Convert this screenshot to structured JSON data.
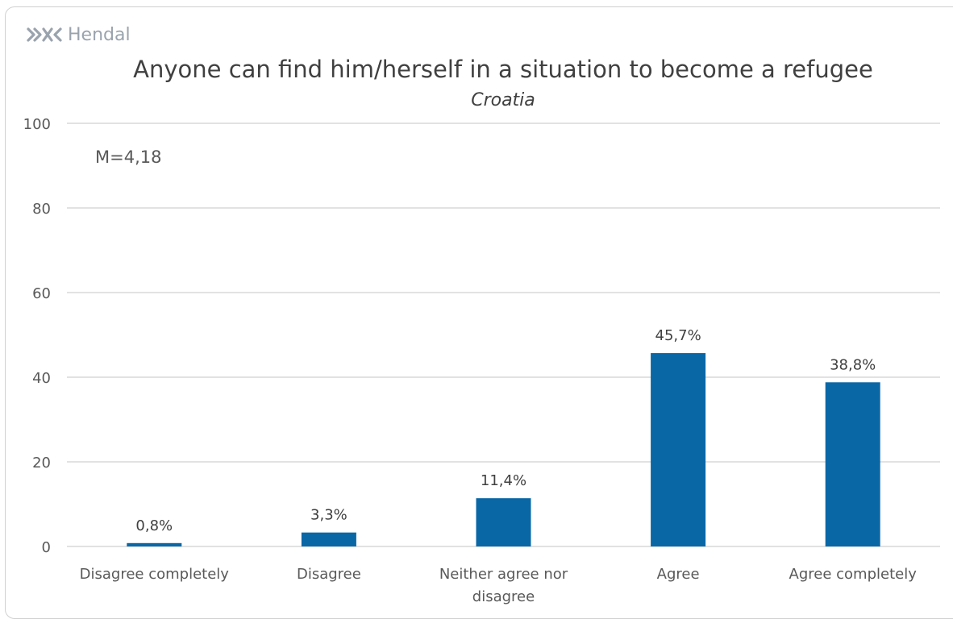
{
  "brand": {
    "name": "Hendal",
    "mark_icon": "hendal-arrows-logo"
  },
  "chart_data": {
    "type": "bar",
    "title": "Anyone can find him/herself in a situation to become a refugee",
    "subtitle": "Croatia",
    "annotation": "M=4,18",
    "categories": [
      "Disagree completely",
      "Disagree",
      "Neither agree nor disagree",
      "Agree",
      "Agree completely"
    ],
    "category_lines": [
      [
        "Disagree completely"
      ],
      [
        "Disagree"
      ],
      [
        "Neither agree nor",
        "disagree"
      ],
      [
        "Agree"
      ],
      [
        "Agree completely"
      ]
    ],
    "values": [
      0.8,
      3.3,
      11.4,
      45.7,
      38.8
    ],
    "value_labels": [
      "0,8%",
      "3,3%",
      "11,4%",
      "45,7%",
      "38,8%"
    ],
    "ylim": [
      0,
      100
    ],
    "yticks": [
      0,
      20,
      40,
      60,
      80,
      100
    ],
    "grid": true,
    "bar_color": "#0a67a6",
    "xlabel": "",
    "ylabel": ""
  }
}
